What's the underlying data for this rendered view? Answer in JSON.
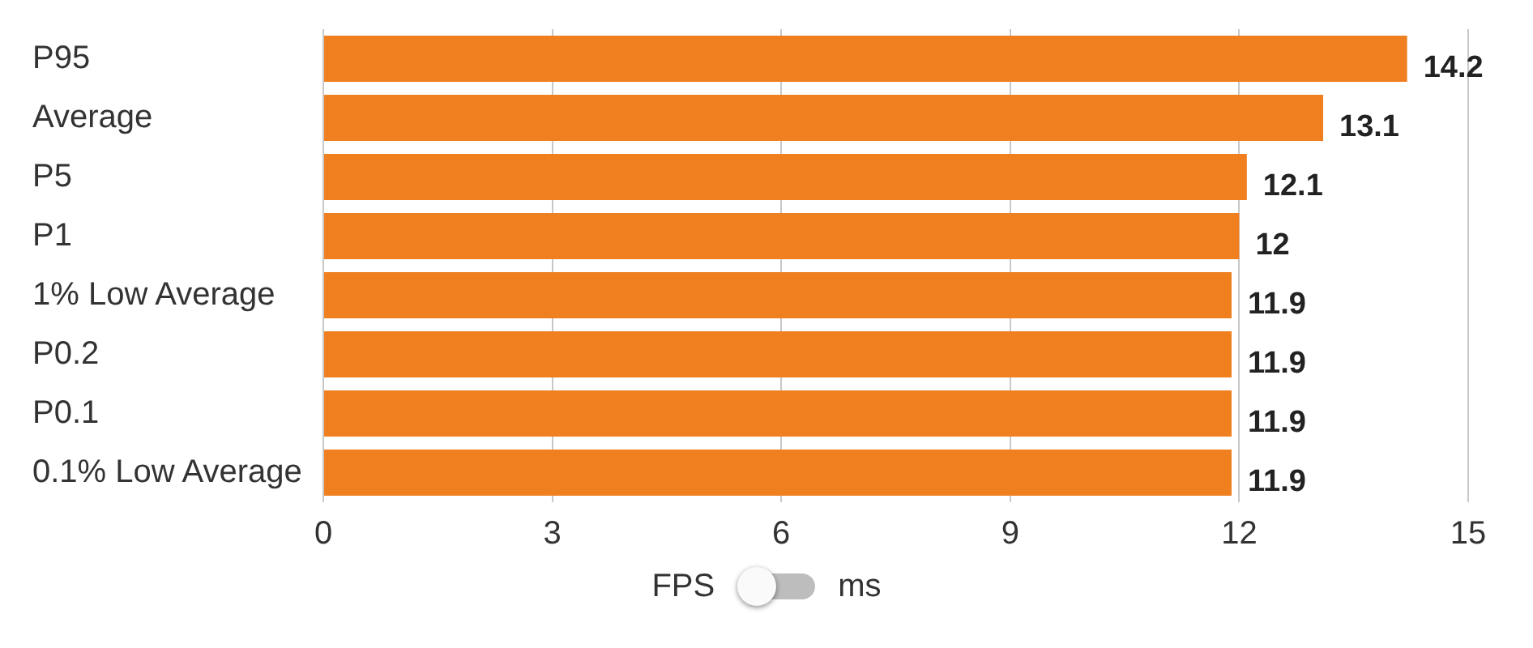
{
  "chart_data": {
    "type": "bar",
    "orientation": "horizontal",
    "categories": [
      "P95",
      "Average",
      "P5",
      "P1",
      "1% Low Average",
      "P0.2",
      "P0.1",
      "0.1% Low Average"
    ],
    "values": [
      14.2,
      13.1,
      12.1,
      12,
      11.9,
      11.9,
      11.9,
      11.9
    ],
    "color": "#f07f20",
    "xlim": [
      0,
      15
    ],
    "xticks": [
      0,
      3,
      6,
      9,
      12,
      15
    ],
    "grid": "x",
    "legend": false,
    "data_labels": true,
    "annotations": [
      "FPS",
      "ms"
    ]
  }
}
